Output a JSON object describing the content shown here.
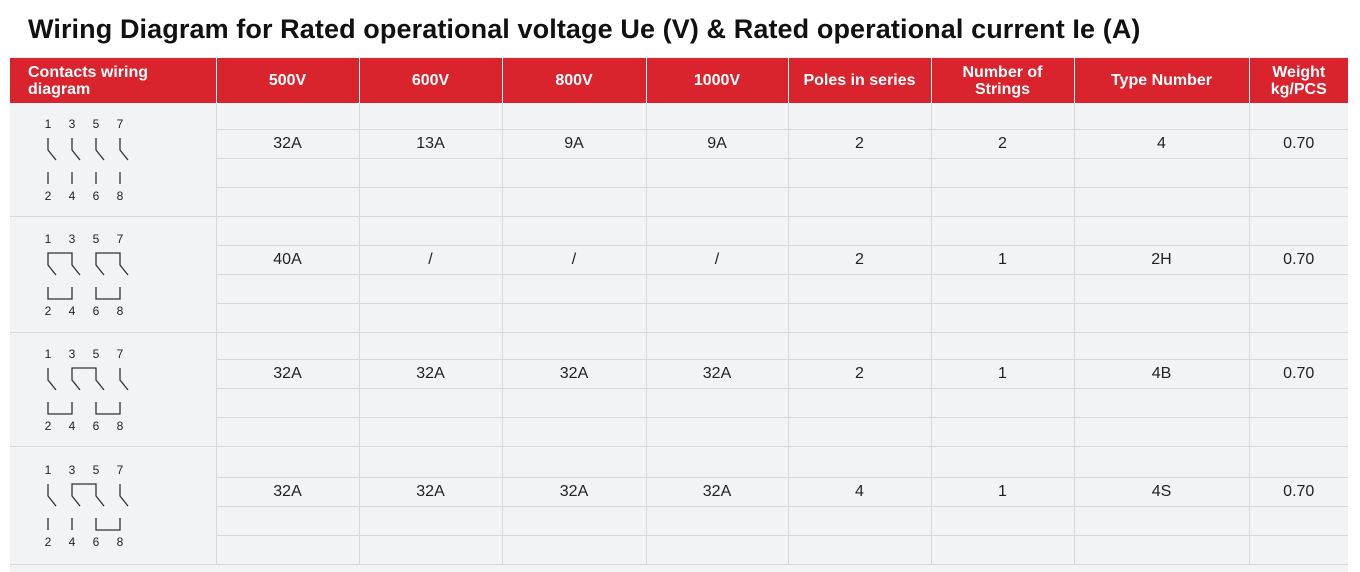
{
  "title": "Wiring Diagram for Rated operational voltage Ue (V) & Rated operational current Ie (A)",
  "table": {
    "headers": [
      "Contacts wiring diagram",
      "500V",
      "600V",
      "800V",
      "1000V",
      "Poles in series",
      "Number of Strings",
      "Type Number",
      "Weight kg/PCS"
    ],
    "rows": [
      {
        "diagram": "diagram-1",
        "cells": [
          "32A",
          "13A",
          "9A",
          "9A",
          "2",
          "2",
          "4",
          "0.70"
        ]
      },
      {
        "diagram": "diagram-2",
        "cells": [
          "40A",
          "/",
          "/",
          "/",
          "2",
          "1",
          "2H",
          "0.70"
        ]
      },
      {
        "diagram": "diagram-3",
        "cells": [
          "32A",
          "32A",
          "32A",
          "32A",
          "2",
          "1",
          "4B",
          "0.70"
        ]
      },
      {
        "diagram": "diagram-4",
        "cells": [
          "32A",
          "32A",
          "32A",
          "32A",
          "4",
          "1",
          "4S",
          "0.70"
        ]
      }
    ]
  },
  "diagram": {
    "top_labels": [
      "1",
      "3",
      "5",
      "7"
    ],
    "bottom_labels": [
      "2",
      "4",
      "6",
      "8"
    ]
  },
  "colors": {
    "header_bg": "#d9232d",
    "header_text": "#ffffff",
    "cell_bg": "#f1f3f5"
  }
}
